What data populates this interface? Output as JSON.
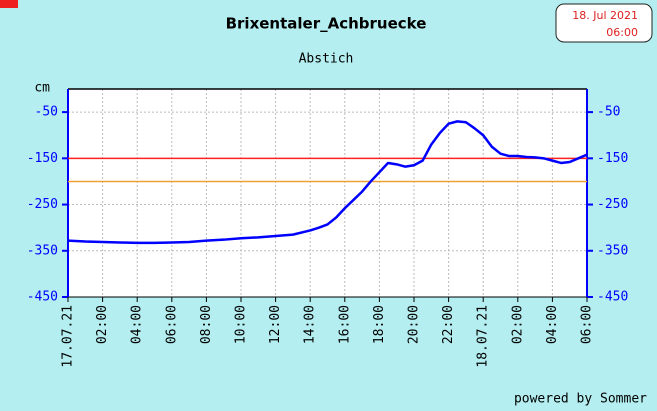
{
  "chart_data": {
    "type": "line",
    "title": "Brixentaler_Achbruecke",
    "subtitle": "Abstich",
    "date_box": [
      "18. Jul 2021",
      "06:00"
    ],
    "y_unit": "cm",
    "footer": "powered by Sommer",
    "xlim": [
      0,
      30
    ],
    "xticks": [
      {
        "value": 0,
        "label": "17.07.21"
      },
      {
        "value": 2,
        "label": "02:00"
      },
      {
        "value": 4,
        "label": "04:00"
      },
      {
        "value": 6,
        "label": "06:00"
      },
      {
        "value": 8,
        "label": "08:00"
      },
      {
        "value": 10,
        "label": "10:00"
      },
      {
        "value": 12,
        "label": "12:00"
      },
      {
        "value": 14,
        "label": "14:00"
      },
      {
        "value": 16,
        "label": "16:00"
      },
      {
        "value": 18,
        "label": "18:00"
      },
      {
        "value": 20,
        "label": "20:00"
      },
      {
        "value": 22,
        "label": "22:00"
      },
      {
        "value": 24,
        "label": "18.07.21"
      },
      {
        "value": 26,
        "label": "02:00"
      },
      {
        "value": 28,
        "label": "04:00"
      },
      {
        "value": 30,
        "label": "06:00"
      }
    ],
    "ylim": [
      -450,
      0
    ],
    "yticks": [
      -50,
      -150,
      -250,
      -350,
      -450
    ],
    "grid": true,
    "reference_lines": [
      {
        "value": -150,
        "color": "#ff2020"
      },
      {
        "value": -200,
        "color": "#f0a030"
      }
    ],
    "series": [
      {
        "color": "#0000ff",
        "x": [
          0,
          1,
          2,
          3,
          4,
          5,
          6,
          7,
          8,
          9,
          10,
          11,
          12,
          13,
          14,
          14.5,
          15,
          15.5,
          16,
          16.5,
          17,
          17.5,
          18,
          18.5,
          19,
          19.5,
          20,
          20.5,
          21,
          21.5,
          22,
          22.5,
          23,
          23.5,
          24,
          24.5,
          25,
          25.5,
          26,
          26.5,
          27,
          27.5,
          28,
          28.5,
          29,
          29.5,
          30
        ],
        "values": [
          -328,
          -330,
          -331,
          -332,
          -333,
          -333,
          -332,
          -331,
          -328,
          -326,
          -323,
          -321,
          -318,
          -315,
          -306,
          -300,
          -293,
          -278,
          -258,
          -240,
          -222,
          -200,
          -180,
          -160,
          -163,
          -168,
          -165,
          -155,
          -120,
          -95,
          -75,
          -70,
          -72,
          -85,
          -100,
          -125,
          -140,
          -145,
          -145,
          -147,
          -148,
          -150,
          -155,
          -160,
          -158,
          -150,
          -142
        ]
      }
    ]
  }
}
